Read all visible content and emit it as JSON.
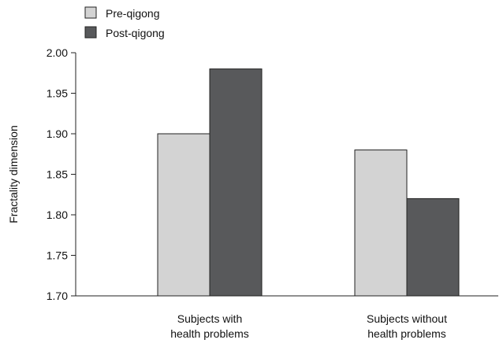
{
  "chart_data": {
    "type": "bar",
    "title": "",
    "xlabel": "",
    "ylabel": "Fractality dimension",
    "ylim": [
      1.7,
      2.0
    ],
    "yticks": [
      "1.70",
      "1.75",
      "1.80",
      "1.85",
      "1.90",
      "1.95",
      "2.00"
    ],
    "categories": [
      [
        "Subjects with",
        "health problems"
      ],
      [
        "Subjects without",
        "health problems"
      ]
    ],
    "series": [
      {
        "name": "Pre-qigong",
        "values": [
          1.9,
          1.88
        ],
        "color": "#d3d3d3"
      },
      {
        "name": "Post-qigong",
        "values": [
          1.98,
          1.82
        ],
        "color": "#58595b"
      }
    ],
    "legend": "top-left",
    "grid": false
  }
}
